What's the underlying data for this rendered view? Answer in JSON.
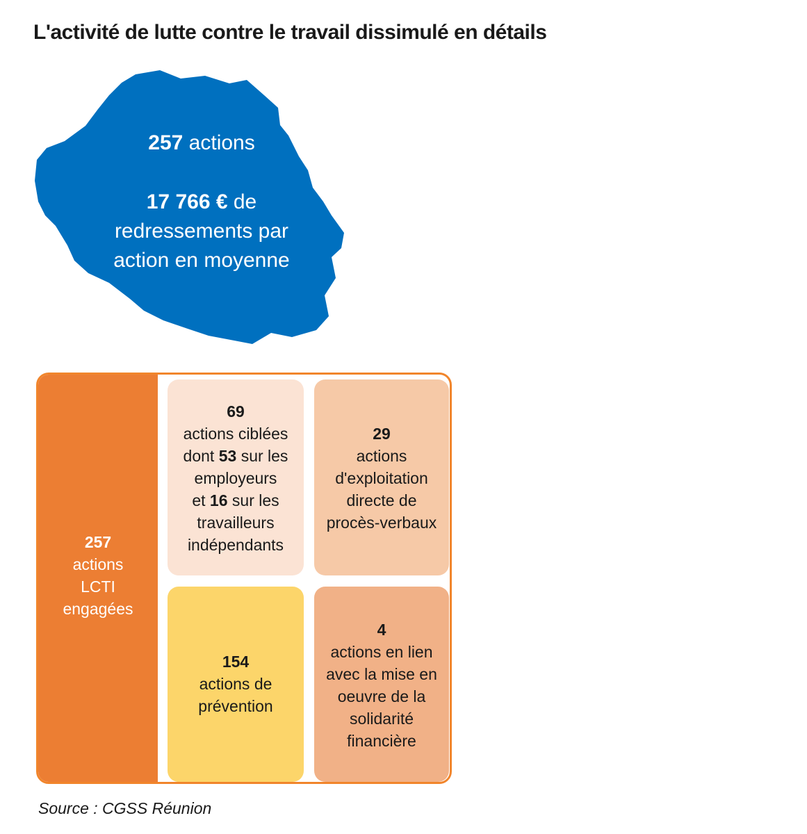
{
  "title": "L'activité de lutte contre le travail dissimulé en détails",
  "island": {
    "actions_value": "257",
    "actions_label": "actions",
    "amount_value": "17 766 €",
    "amount_label_1": "de",
    "amount_label_2": "redressements par",
    "amount_label_3": "action en moyenne",
    "color": "#0070bf"
  },
  "left_panel": {
    "value": "257",
    "line1": "actions",
    "line2": "LCTI",
    "line3": "engagées",
    "color": "#ec7e33"
  },
  "boxes": {
    "targeted": {
      "value": "69",
      "line1": "actions ciblées",
      "line2_pre": "dont",
      "employers_value": "53",
      "line2_post": "sur les",
      "line3": "employeurs",
      "line4_pre": "et",
      "independents_value": "16",
      "line4_post": "sur les",
      "line5": "travailleurs",
      "line6": "indépendants",
      "color": "#fbe3d4"
    },
    "pv": {
      "value": "29",
      "line1": "actions",
      "line2": "d'exploitation",
      "line3": "directe de",
      "line4": "procès-verbaux",
      "color": "#f6c9a7"
    },
    "prevention": {
      "value": "154",
      "line1": "actions de",
      "line2": "prévention",
      "color": "#fcd56a"
    },
    "solidarity": {
      "value": "4",
      "line1": "actions en lien",
      "line2": "avec la mise en",
      "line3": "oeuvre de la",
      "line4": "solidarité",
      "line5": "financière",
      "color": "#f1b187"
    }
  },
  "source": "Source : CGSS Réunion"
}
